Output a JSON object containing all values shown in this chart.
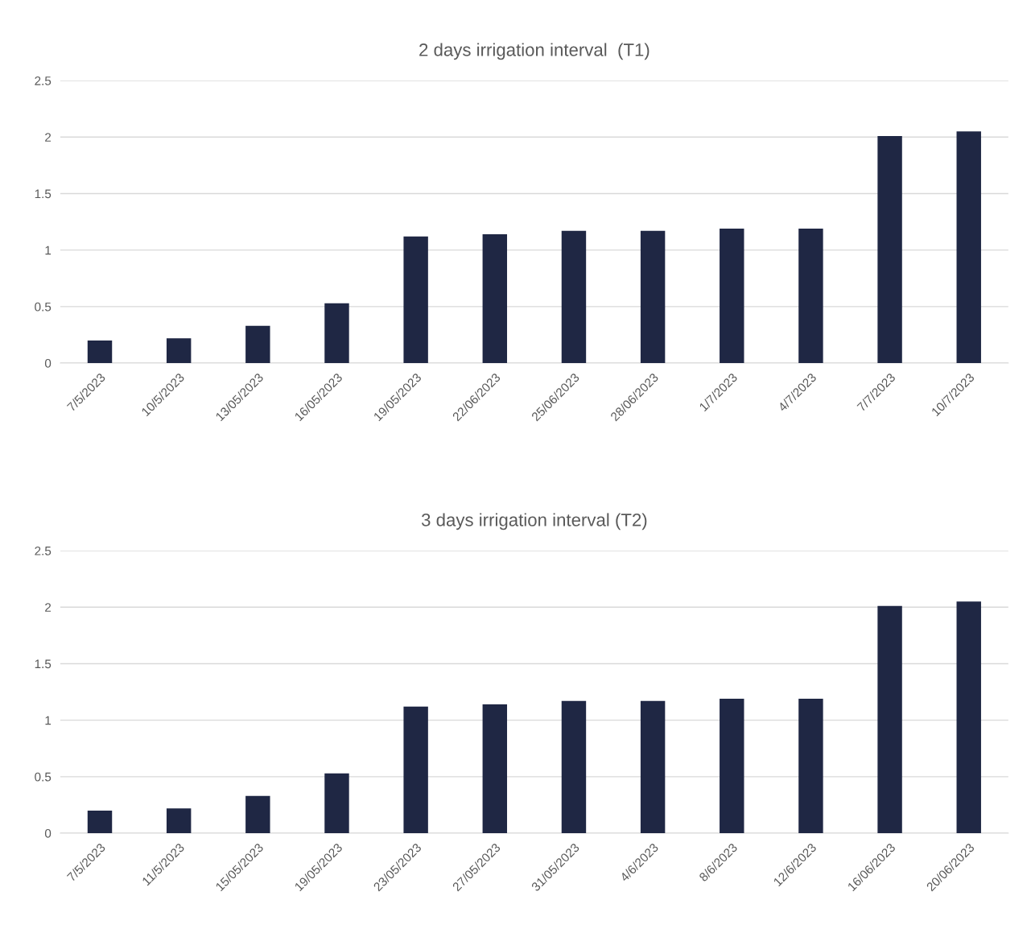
{
  "chart_data": [
    {
      "type": "bar",
      "title": "2 days irrigation interval  (T1)",
      "categories": [
        "7/5/2023",
        "10/5/2023",
        "13/05/2023",
        "16/05/2023",
        "19/05/2023",
        "22/06/2023",
        "25/06/2023",
        "28/06/2023",
        "1/7/2023",
        "4/7/2023",
        "7/7/2023",
        "10/7/2023"
      ],
      "values": [
        0.2,
        0.22,
        0.33,
        0.53,
        1.12,
        1.14,
        1.17,
        1.17,
        1.19,
        1.19,
        2.01,
        2.05
      ],
      "color": "#1f2744",
      "ylim": [
        0,
        2.5
      ],
      "yticks": [
        0,
        0.5,
        1,
        1.5,
        2,
        2.5
      ],
      "grid": "y"
    },
    {
      "type": "bar",
      "title": "3 days irrigation interval (T2)",
      "categories": [
        "7/5/2023",
        "11/5/2023",
        "15/05/2023",
        "19/05/2023",
        "23/05/2023",
        "27/05/2023",
        "31/05/2023",
        "4/6/2023",
        "8/6/2023",
        "12/6/2023",
        "16/06/2023",
        "20/06/2023"
      ],
      "values": [
        0.2,
        0.22,
        0.33,
        0.53,
        1.12,
        1.14,
        1.17,
        1.17,
        1.19,
        1.19,
        2.01,
        2.05
      ],
      "color": "#1f2744",
      "ylim": [
        0,
        2.5
      ],
      "yticks": [
        0,
        0.5,
        1,
        1.5,
        2,
        2.5
      ],
      "grid": "y"
    }
  ]
}
